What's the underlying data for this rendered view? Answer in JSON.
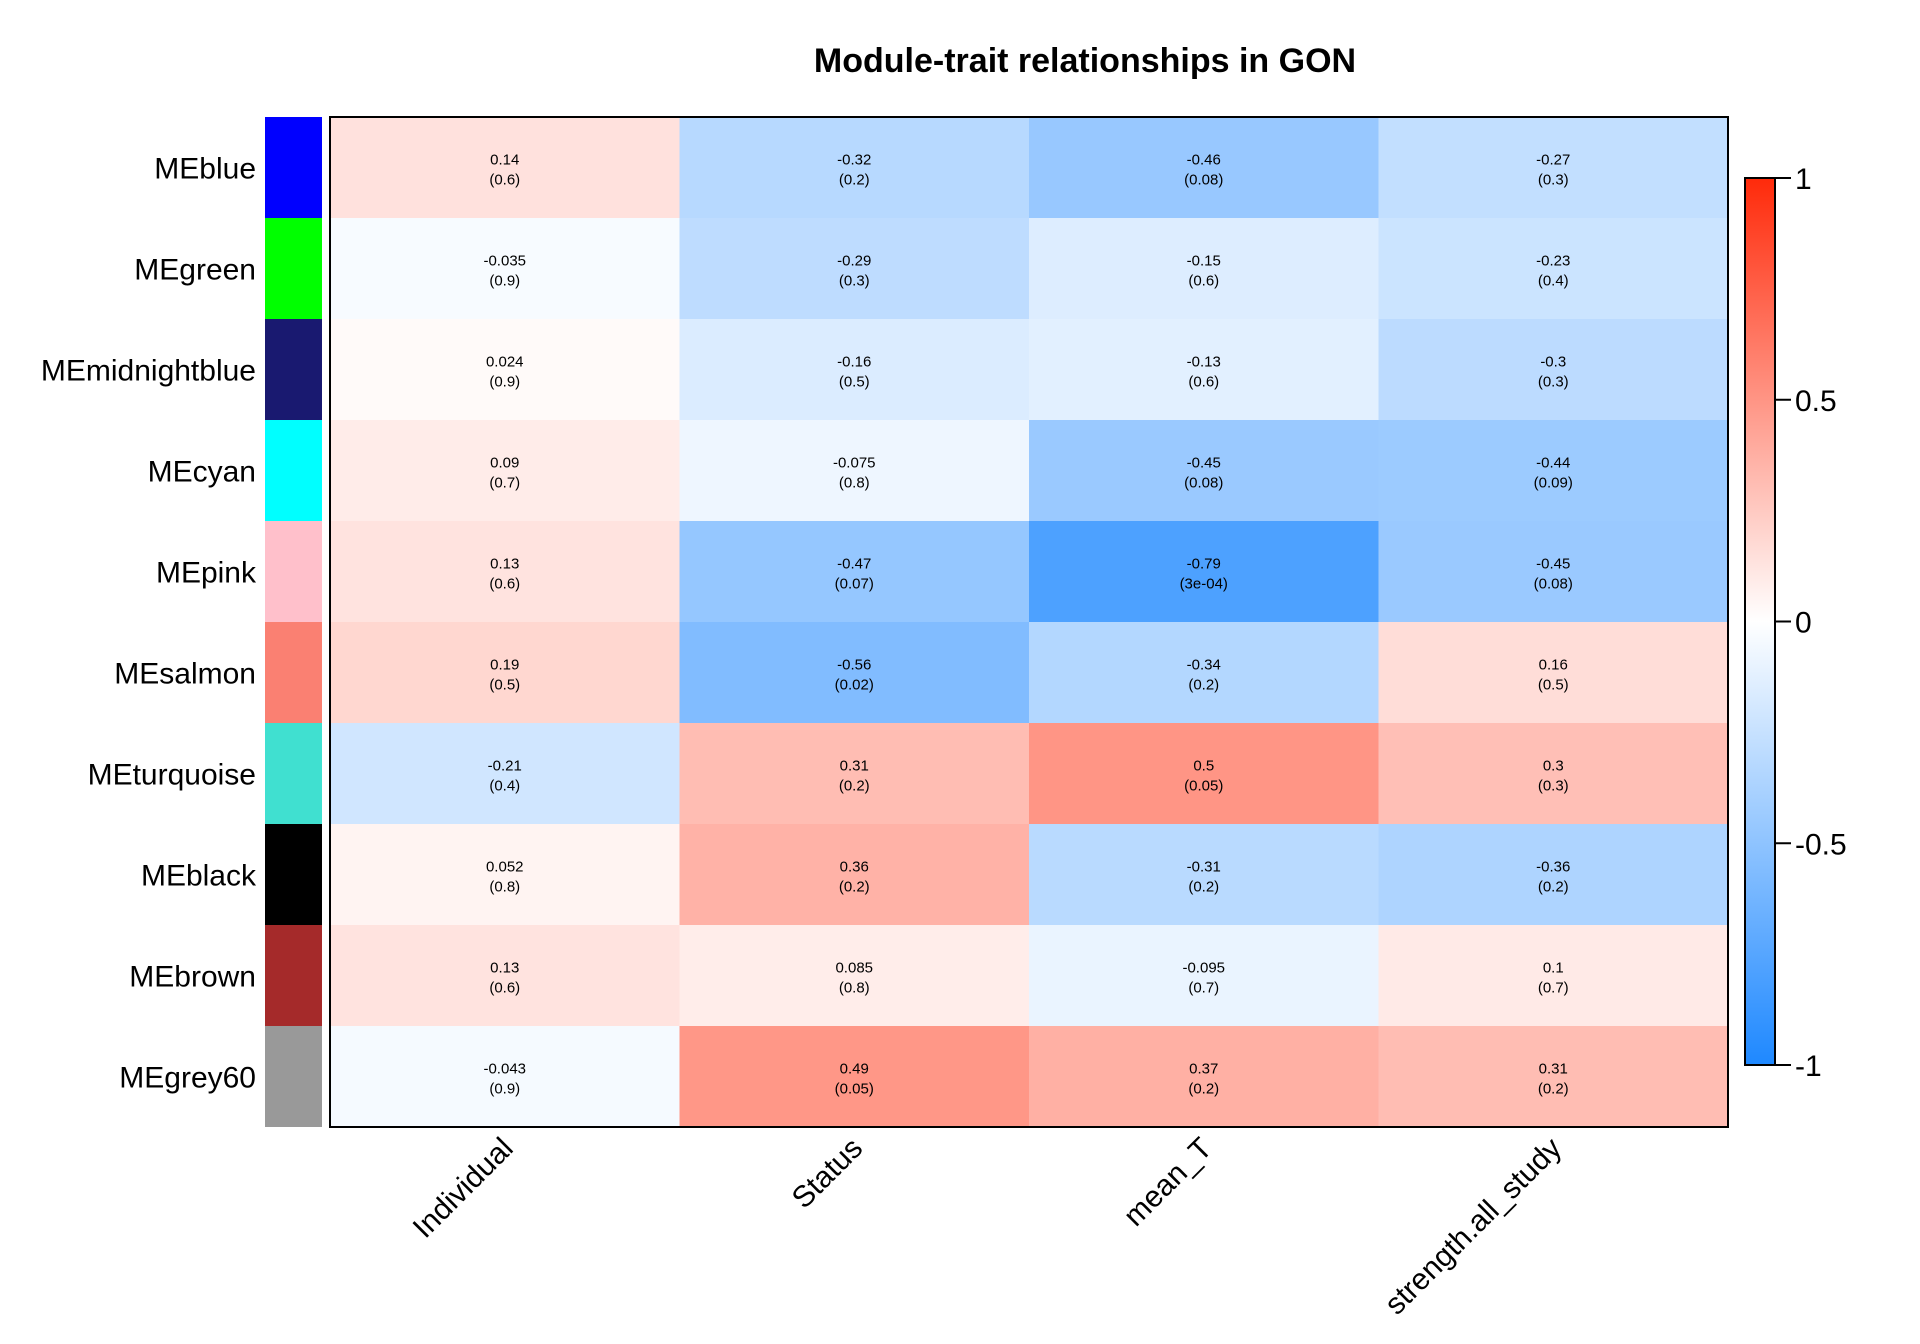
{
  "chart_data": {
    "type": "heatmap",
    "title": "Module-trait relationships in GON",
    "rows": [
      {
        "label": "MEblue",
        "color": "#0000FF"
      },
      {
        "label": "MEgreen",
        "color": "#00FF00"
      },
      {
        "label": "MEmidnightblue",
        "color": "#191970"
      },
      {
        "label": "MEcyan",
        "color": "#00FFFF"
      },
      {
        "label": "MEpink",
        "color": "#FFC0CB"
      },
      {
        "label": "MEsalmon",
        "color": "#FA8072"
      },
      {
        "label": "MEturquoise",
        "color": "#40E0D0"
      },
      {
        "label": "MEblack",
        "color": "#000000"
      },
      {
        "label": "MEbrown",
        "color": "#A52A2A"
      },
      {
        "label": "MEgrey60",
        "color": "#999999"
      }
    ],
    "columns": [
      "Individual",
      "Status",
      "mean_T",
      "strength.all_study"
    ],
    "values": [
      [
        0.14,
        -0.32,
        -0.46,
        -0.27
      ],
      [
        -0.035,
        -0.29,
        -0.15,
        -0.23
      ],
      [
        0.024,
        -0.16,
        -0.13,
        -0.3
      ],
      [
        0.09,
        -0.075,
        -0.45,
        -0.44
      ],
      [
        0.13,
        -0.47,
        -0.79,
        -0.45
      ],
      [
        0.19,
        -0.56,
        -0.34,
        0.16
      ],
      [
        -0.21,
        0.31,
        0.5,
        0.3
      ],
      [
        0.052,
        0.36,
        -0.31,
        -0.36
      ],
      [
        0.13,
        0.085,
        -0.095,
        0.1
      ],
      [
        -0.043,
        0.49,
        0.37,
        0.31
      ]
    ],
    "value_labels": [
      [
        "0.14",
        "-0.32",
        "-0.46",
        "-0.27"
      ],
      [
        "-0.035",
        "-0.29",
        "-0.15",
        "-0.23"
      ],
      [
        "0.024",
        "-0.16",
        "-0.13",
        "-0.3"
      ],
      [
        "0.09",
        "-0.075",
        "-0.45",
        "-0.44"
      ],
      [
        "0.13",
        "-0.47",
        "-0.79",
        "-0.45"
      ],
      [
        "0.19",
        "-0.56",
        "-0.34",
        "0.16"
      ],
      [
        "-0.21",
        "0.31",
        "0.5",
        "0.3"
      ],
      [
        "0.052",
        "0.36",
        "-0.31",
        "-0.36"
      ],
      [
        "0.13",
        "0.085",
        "-0.095",
        "0.1"
      ],
      [
        "-0.043",
        "0.49",
        "0.37",
        "0.31"
      ]
    ],
    "pvalues": [
      [
        "(0.6)",
        "(0.2)",
        "(0.08)",
        "(0.3)"
      ],
      [
        "(0.9)",
        "(0.3)",
        "(0.6)",
        "(0.4)"
      ],
      [
        "(0.9)",
        "(0.5)",
        "(0.6)",
        "(0.3)"
      ],
      [
        "(0.7)",
        "(0.8)",
        "(0.08)",
        "(0.09)"
      ],
      [
        "(0.6)",
        "(0.07)",
        "(3e-04)",
        "(0.08)"
      ],
      [
        "(0.5)",
        "(0.02)",
        "(0.2)",
        "(0.5)"
      ],
      [
        "(0.4)",
        "(0.2)",
        "(0.05)",
        "(0.3)"
      ],
      [
        "(0.8)",
        "(0.2)",
        "(0.2)",
        "(0.2)"
      ],
      [
        "(0.6)",
        "(0.8)",
        "(0.7)",
        "(0.7)"
      ],
      [
        "(0.9)",
        "(0.05)",
        "(0.2)",
        "(0.2)"
      ]
    ],
    "color_scale": {
      "min": -1,
      "max": 1,
      "low_color": "#1E88FF",
      "mid_color": "#FFFFFF",
      "high_color": "#FF2A0A",
      "ticks": [
        1,
        0.5,
        0,
        -0.5,
        -1
      ],
      "tick_labels": [
        "1",
        "0.5",
        "0",
        "-0.5",
        "-1"
      ]
    },
    "legend_position": "right"
  }
}
